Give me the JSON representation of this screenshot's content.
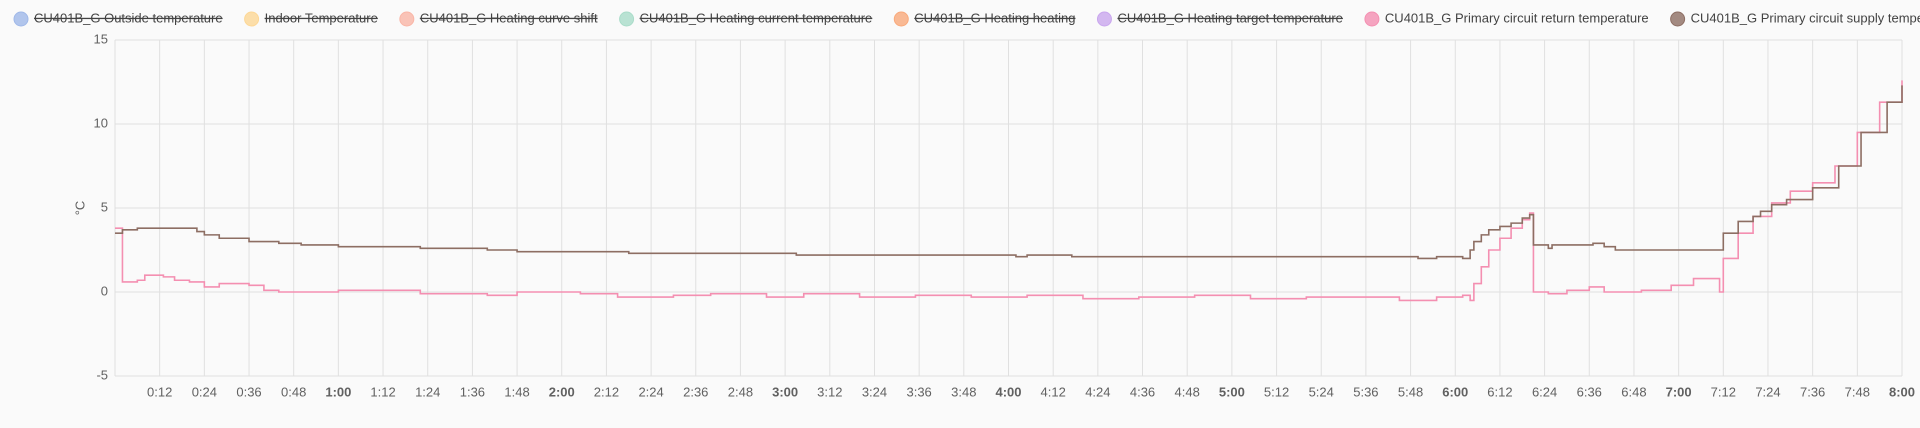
{
  "chart_data": {
    "type": "line",
    "step": true,
    "y_label": "°C",
    "grid": true,
    "xlim": [
      0,
      480
    ],
    "ylim": [
      -5,
      15
    ],
    "yticks": [
      -5,
      0,
      5,
      10,
      15
    ],
    "xticks": [
      {
        "value": 12,
        "label": "0:12"
      },
      {
        "value": 24,
        "label": "0:24"
      },
      {
        "value": 36,
        "label": "0:36"
      },
      {
        "value": 48,
        "label": "0:48"
      },
      {
        "value": 60,
        "label": "1:00"
      },
      {
        "value": 72,
        "label": "1:12"
      },
      {
        "value": 84,
        "label": "1:24"
      },
      {
        "value": 96,
        "label": "1:36"
      },
      {
        "value": 108,
        "label": "1:48"
      },
      {
        "value": 120,
        "label": "2:00"
      },
      {
        "value": 132,
        "label": "2:12"
      },
      {
        "value": 144,
        "label": "2:24"
      },
      {
        "value": 156,
        "label": "2:36"
      },
      {
        "value": 168,
        "label": "2:48"
      },
      {
        "value": 180,
        "label": "3:00"
      },
      {
        "value": 192,
        "label": "3:12"
      },
      {
        "value": 204,
        "label": "3:24"
      },
      {
        "value": 216,
        "label": "3:36"
      },
      {
        "value": 228,
        "label": "3:48"
      },
      {
        "value": 240,
        "label": "4:00"
      },
      {
        "value": 252,
        "label": "4:12"
      },
      {
        "value": 264,
        "label": "4:24"
      },
      {
        "value": 276,
        "label": "4:36"
      },
      {
        "value": 288,
        "label": "4:48"
      },
      {
        "value": 300,
        "label": "5:00"
      },
      {
        "value": 312,
        "label": "5:12"
      },
      {
        "value": 324,
        "label": "5:24"
      },
      {
        "value": 336,
        "label": "5:36"
      },
      {
        "value": 348,
        "label": "5:48"
      },
      {
        "value": 360,
        "label": "6:00"
      },
      {
        "value": 372,
        "label": "6:12"
      },
      {
        "value": 384,
        "label": "6:24"
      },
      {
        "value": 396,
        "label": "6:36"
      },
      {
        "value": 408,
        "label": "6:48"
      },
      {
        "value": 420,
        "label": "7:00"
      },
      {
        "value": 432,
        "label": "7:12"
      },
      {
        "value": 444,
        "label": "7:24"
      },
      {
        "value": 456,
        "label": "7:36"
      },
      {
        "value": 468,
        "label": "7:48"
      },
      {
        "value": 480,
        "label": "8:00"
      }
    ],
    "x": [
      0,
      2,
      6,
      8,
      13,
      16,
      20,
      22,
      24,
      28,
      36,
      40,
      44,
      50,
      60,
      82,
      100,
      108,
      125,
      135,
      138,
      150,
      160,
      175,
      183,
      185,
      200,
      215,
      230,
      242,
      245,
      257,
      260,
      275,
      290,
      305,
      320,
      345,
      350,
      355,
      362,
      364,
      365,
      367,
      369,
      372,
      375,
      378,
      380,
      381,
      385,
      386,
      390,
      393,
      396,
      397,
      400,
      403,
      410,
      418,
      424,
      431,
      432,
      436,
      440,
      442,
      445,
      449,
      450,
      456,
      462,
      463,
      468,
      469,
      474,
      476,
      480
    ],
    "series": [
      {
        "name": "CU401B_G Outside temperature",
        "color": "#9fb8e8",
        "hidden": true
      },
      {
        "name": "Indoor Temperature",
        "color": "#fdd795",
        "hidden": true
      },
      {
        "name": "CU401B_G Heating curve shift",
        "color": "#f9b5a6",
        "hidden": true
      },
      {
        "name": "CU401B_G Heating current temperature",
        "color": "#a9dcc9",
        "hidden": true
      },
      {
        "name": "CU401B_G Heating heating",
        "color": "#f9a97a",
        "hidden": true
      },
      {
        "name": "CU401B_G Heating target temperature",
        "color": "#c9a6ee",
        "hidden": true
      },
      {
        "name": "CU401B_G Primary circuit return temperature",
        "color": "#f48fb1",
        "hidden": false,
        "values": [
          3.8,
          0.6,
          0.7,
          1.0,
          0.9,
          0.7,
          0.6,
          0.6,
          0.3,
          0.5,
          0.4,
          0.1,
          0.0,
          0.0,
          0.1,
          -0.1,
          -0.2,
          0.0,
          -0.1,
          -0.3,
          -0.3,
          -0.2,
          -0.1,
          -0.3,
          -0.3,
          -0.1,
          -0.3,
          -0.2,
          -0.3,
          -0.3,
          -0.2,
          -0.2,
          -0.4,
          -0.3,
          -0.2,
          -0.4,
          -0.3,
          -0.5,
          -0.5,
          -0.3,
          -0.2,
          -0.5,
          0.5,
          1.5,
          2.5,
          3.2,
          3.8,
          4.3,
          4.7,
          0.0,
          -0.1,
          -0.1,
          0.1,
          0.1,
          0.3,
          0.3,
          0.0,
          0.0,
          0.1,
          0.4,
          0.8,
          0.0,
          2.0,
          3.5,
          4.5,
          4.5,
          5.3,
          5.3,
          6.0,
          6.5,
          7.5,
          7.5,
          9.5,
          9.5,
          11.3,
          11.3,
          12.6
        ]
      },
      {
        "name": "CU401B_G Primary circuit supply temperature",
        "color": "#8d6e63",
        "hidden": false,
        "values": [
          3.5,
          3.7,
          3.8,
          3.8,
          3.8,
          3.8,
          3.8,
          3.6,
          3.4,
          3.2,
          3.0,
          3.0,
          2.9,
          2.8,
          2.7,
          2.6,
          2.5,
          2.4,
          2.4,
          2.4,
          2.3,
          2.3,
          2.3,
          2.3,
          2.2,
          2.2,
          2.2,
          2.2,
          2.2,
          2.1,
          2.2,
          2.1,
          2.1,
          2.1,
          2.1,
          2.1,
          2.1,
          2.1,
          2.0,
          2.1,
          2.0,
          2.5,
          3.0,
          3.4,
          3.7,
          3.9,
          4.1,
          4.4,
          4.6,
          2.8,
          2.6,
          2.8,
          2.8,
          2.8,
          2.8,
          2.9,
          2.7,
          2.5,
          2.5,
          2.5,
          2.5,
          2.5,
          3.5,
          4.2,
          4.5,
          4.8,
          5.2,
          5.5,
          5.5,
          6.2,
          6.2,
          7.5,
          7.5,
          9.5,
          9.5,
          11.3,
          12.3
        ]
      }
    ]
  }
}
